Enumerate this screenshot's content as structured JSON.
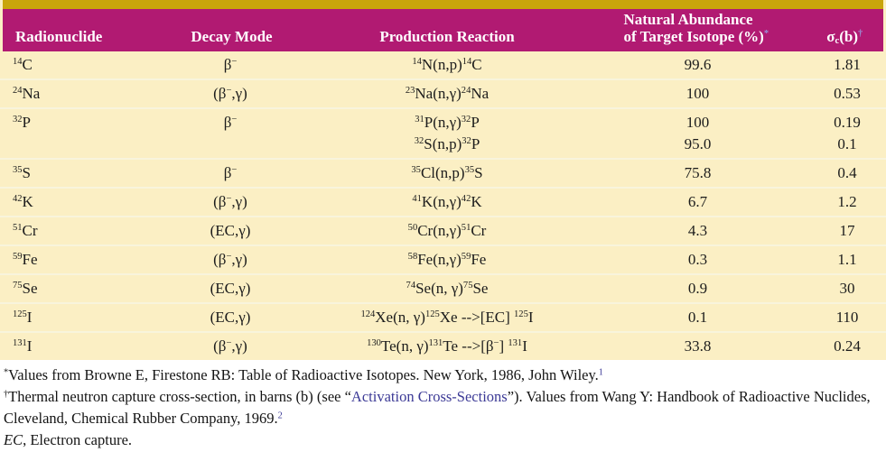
{
  "colors": {
    "top_accent_bar": "#C9A50B",
    "header_background": "#B11A72",
    "header_text": "#FFFFFF",
    "body_background": "#FBEFC4",
    "row_divider": "#F8F4DC",
    "link_text": "#3C3A96",
    "footnote_mark": "#9A8FD6"
  },
  "table": {
    "columns": [
      {
        "key": "nuclide",
        "label": "Radionuclide"
      },
      {
        "key": "decay",
        "label": "Decay Mode"
      },
      {
        "key": "reaction",
        "label": "Production Reaction"
      },
      {
        "key": "abundance",
        "label": "Natural Abundance\nof Target Isotope (%)~{*}"
      },
      {
        "key": "sigma",
        "label": "σ_{c}(b)~{†}"
      }
    ],
    "rows": [
      {
        "nuclide": "^{14}C",
        "decay": "β^{−}",
        "reaction": "^{14}N(n,p)^{14}C",
        "abundance": "99.6",
        "sigma": "1.81"
      },
      {
        "nuclide": "^{24}Na",
        "decay": "(β^{−},γ)",
        "reaction": "^{23}Na(n,γ)^{24}Na",
        "abundance": "100",
        "sigma": "0.53"
      },
      {
        "nuclide": "^{32}P",
        "decay": "β^{−}",
        "reaction": "^{31}P(n,γ)^{32}P\n^{32}S(n,p)^{32}P",
        "abundance": "100\n95.0",
        "sigma": "0.19\n0.1"
      },
      {
        "nuclide": "^{35}S",
        "decay": "β^{−}",
        "reaction": "^{35}Cl(n,p)^{35}S",
        "abundance": "75.8",
        "sigma": "0.4"
      },
      {
        "nuclide": "^{42}K",
        "decay": "(β^{−},γ)",
        "reaction": "^{41}K(n,γ)^{42}K",
        "abundance": "6.7",
        "sigma": "1.2"
      },
      {
        "nuclide": "^{51}Cr",
        "decay": "(EC,γ)",
        "reaction": "^{50}Cr(n,γ)^{51}Cr",
        "abundance": "4.3",
        "sigma": "17"
      },
      {
        "nuclide": "^{59}Fe",
        "decay": "(β^{−},γ)",
        "reaction": "^{58}Fe(n,γ)^{59}Fe",
        "abundance": "0.3",
        "sigma": "1.1"
      },
      {
        "nuclide": "^{75}Se",
        "decay": "(EC,γ)",
        "reaction": "^{74}Se(n, γ)^{75}Se",
        "abundance": "0.9",
        "sigma": "30"
      },
      {
        "nuclide": "^{125}I",
        "decay": "(EC,γ)",
        "reaction": "^{124}Xe(n, γ)^{125}Xe -->[EC] ^{125}I",
        "abundance": "0.1",
        "sigma": "110"
      },
      {
        "nuclide": "^{131}I",
        "decay": "(β^{−},γ)",
        "reaction": "^{130}Te(n, γ)^{131}Te -->[β^{−}] ^{131}I",
        "abundance": "33.8",
        "sigma": "0.24"
      }
    ]
  },
  "footnotes": [
    "^{*}Values from Browne E, Firestone RB: Table of Radioactive Isotopes. New York, 1986, John Wiley.@{1}",
    "^{†}Thermal neutron capture cross-section, in barns (b) (see “[[Activation Cross-Sections]]”). Values from Wang Y: Handbook of Radioactive Nuclides, Cleveland, Chemical Rubber Company, 1969.@{2}",
    "${EC}, Electron capture."
  ]
}
